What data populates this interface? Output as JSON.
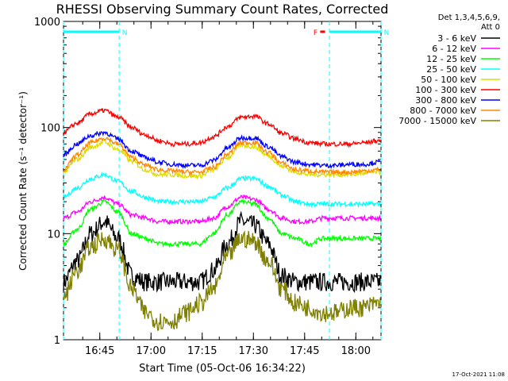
{
  "chart_data": {
    "type": "line",
    "title": "RHESSI Observing Summary Count Rates, Corrected",
    "xlabel": "Start Time (05-Oct-06 16:34:22)",
    "ylabel": "Corrected Count Rate (s⁻¹ detector⁻¹)",
    "yscale": "log",
    "ylim": [
      1,
      1000
    ],
    "xlim_minutes": [
      0,
      93
    ],
    "y_ticks": [
      {
        "value": 1,
        "label": "1"
      },
      {
        "value": 10,
        "label": "10"
      },
      {
        "value": 100,
        "label": "100"
      },
      {
        "value": 1000,
        "label": "1000"
      }
    ],
    "x_ticks": [
      {
        "value": 10.63,
        "label": "16:45"
      },
      {
        "value": 25.63,
        "label": "17:00"
      },
      {
        "value": 40.63,
        "label": "17:15"
      },
      {
        "value": 55.63,
        "label": "17:30"
      },
      {
        "value": 70.63,
        "label": "17:45"
      },
      {
        "value": 85.63,
        "label": "18:00"
      }
    ],
    "legend": {
      "placement": "right",
      "header": [
        "Det 1,3,4,5,6,9,",
        "Att 0"
      ]
    },
    "flags": [
      {
        "label": "N",
        "type": "night",
        "start": 0,
        "end": 16.3,
        "color": "#00ffff"
      },
      {
        "label": "N",
        "type": "night",
        "start": 77.9,
        "end": 93,
        "color": "#00ffff"
      },
      {
        "label": "F",
        "type": "flare",
        "start": 75.2,
        "end": 76.6,
        "color": "#ff0000"
      }
    ],
    "boundaries": [
      0,
      16.3,
      77.9,
      93
    ],
    "x": [
      0,
      4,
      8,
      12,
      16,
      20,
      24,
      28,
      32,
      36,
      40,
      44,
      48,
      52,
      56,
      60,
      64,
      68,
      72,
      76,
      80,
      84,
      88,
      92
    ],
    "series": [
      {
        "name": "3 - 6 keV",
        "color": "#000000",
        "values": [
          3.5,
          5.5,
          10,
          13,
          9,
          4,
          3.5,
          3.5,
          3.5,
          3.5,
          3.5,
          4.5,
          8,
          13,
          12,
          8,
          4,
          3.5,
          3.5,
          3.5,
          3.5,
          3.5,
          3.5,
          3.5
        ]
      },
      {
        "name": "6 - 12 keV",
        "color": "#ff00ff",
        "values": [
          14,
          16,
          20,
          22,
          19,
          15,
          14,
          13,
          13,
          13,
          13,
          14,
          18,
          22,
          21,
          17,
          14,
          13,
          13,
          14,
          14,
          14,
          14,
          14
        ]
      },
      {
        "name": "12 - 25 keV",
        "color": "#00ff00",
        "values": [
          8,
          11,
          17,
          20,
          16,
          10,
          9,
          8,
          8,
          8,
          8,
          10,
          15,
          20,
          19,
          14,
          10,
          9,
          8,
          9,
          9,
          9,
          9,
          9
        ]
      },
      {
        "name": "25 - 50 keV",
        "color": "#00ffff",
        "values": [
          22,
          27,
          33,
          36,
          31,
          25,
          22,
          20,
          20,
          20,
          20,
          22,
          27,
          33,
          33,
          28,
          23,
          20,
          19,
          19,
          19,
          19,
          19,
          19
        ]
      },
      {
        "name": "50 - 100 keV",
        "color": "#dddd00",
        "values": [
          38,
          50,
          65,
          73,
          62,
          48,
          40,
          36,
          36,
          35,
          35,
          40,
          52,
          68,
          66,
          54,
          43,
          38,
          36,
          36,
          36,
          36,
          37,
          38
        ]
      },
      {
        "name": "100 - 300 keV",
        "color": "#ff0000",
        "values": [
          90,
          110,
          135,
          145,
          125,
          100,
          85,
          75,
          70,
          70,
          72,
          82,
          102,
          125,
          128,
          108,
          88,
          78,
          72,
          70,
          70,
          70,
          72,
          75
        ]
      },
      {
        "name": "300 - 800 keV",
        "color": "#0000ff",
        "values": [
          55,
          70,
          84,
          90,
          78,
          60,
          52,
          47,
          45,
          44,
          44,
          49,
          64,
          80,
          80,
          66,
          53,
          47,
          45,
          44,
          44,
          45,
          45,
          47
        ]
      },
      {
        "name": "800 - 7000 keV",
        "color": "#ff8800",
        "values": [
          40,
          55,
          72,
          80,
          70,
          52,
          44,
          40,
          39,
          38,
          38,
          42,
          56,
          72,
          72,
          58,
          46,
          40,
          39,
          38,
          38,
          38,
          39,
          40
        ]
      },
      {
        "name": "7000 - 15000 keV",
        "color": "#808000",
        "values": [
          2.5,
          4.5,
          7.5,
          9,
          7,
          3,
          1.8,
          1.5,
          1.5,
          1.8,
          2.2,
          3,
          6,
          9,
          8.5,
          5.5,
          3,
          2.2,
          2,
          1.8,
          1.8,
          2,
          2,
          2.2
        ]
      }
    ]
  },
  "footer": {
    "timestamp": "17-Oct-2021 11:08"
  }
}
